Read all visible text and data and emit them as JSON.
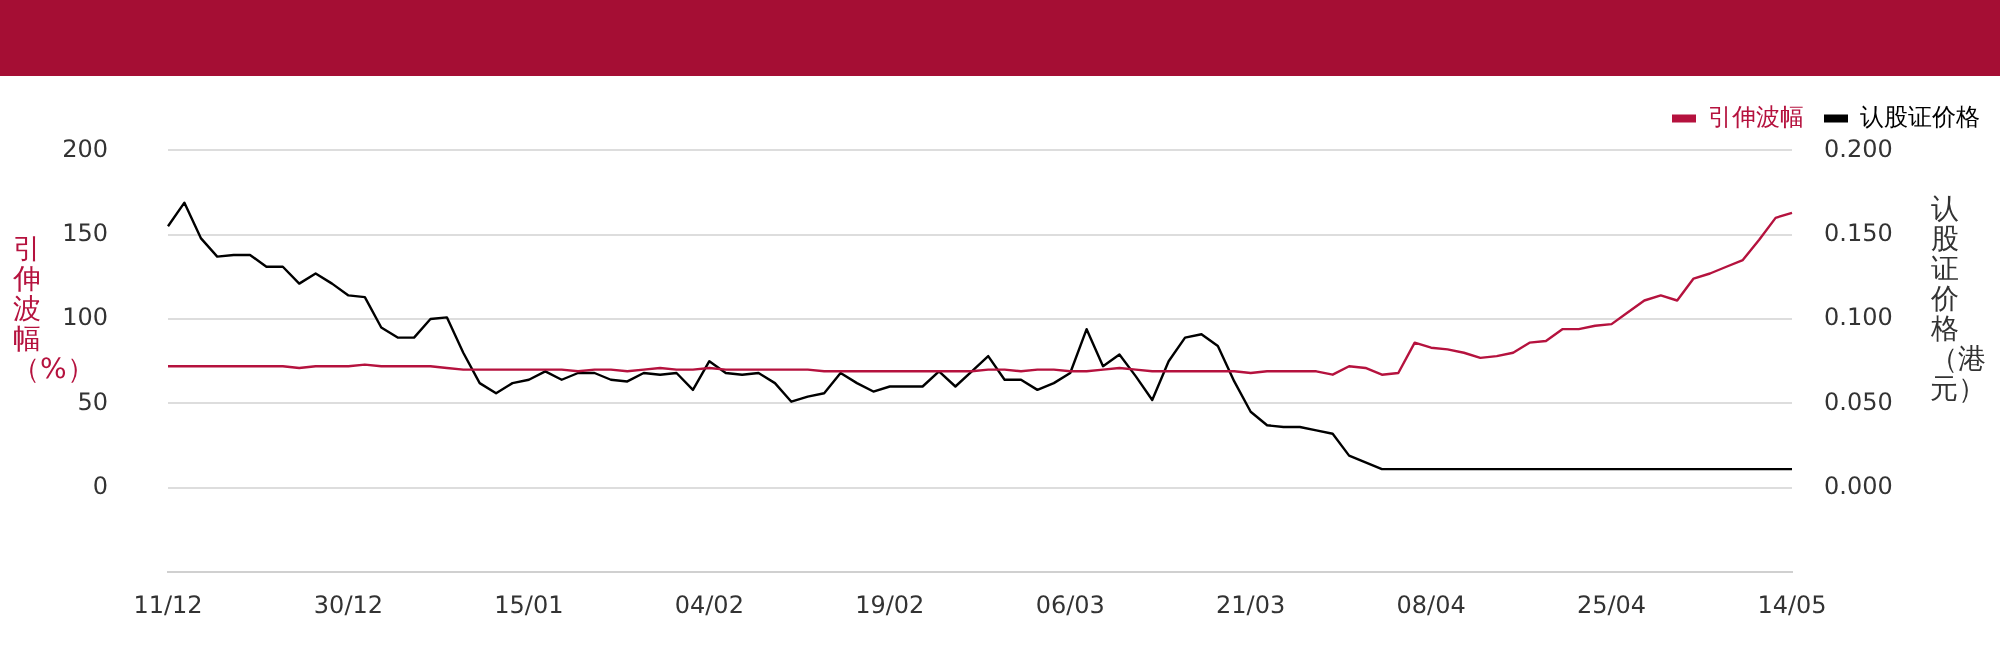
{
  "chart_data": {
    "type": "line",
    "categories": [
      "11/12",
      null,
      null,
      null,
      null,
      null,
      null,
      null,
      null,
      null,
      null,
      "30/12",
      null,
      null,
      null,
      null,
      null,
      null,
      null,
      null,
      null,
      null,
      "15/01",
      null,
      null,
      null,
      null,
      null,
      null,
      null,
      null,
      null,
      null,
      "04/02",
      null,
      null,
      null,
      null,
      null,
      null,
      null,
      null,
      null,
      null,
      "19/02",
      null,
      null,
      null,
      null,
      null,
      null,
      null,
      null,
      null,
      null,
      "06/03",
      null,
      null,
      null,
      null,
      null,
      null,
      null,
      null,
      null,
      null,
      "21/03",
      null,
      null,
      null,
      null,
      null,
      null,
      null,
      null,
      null,
      null,
      "08/04",
      null,
      null,
      null,
      null,
      null,
      null,
      null,
      null,
      null,
      null,
      "25/04",
      null,
      null,
      null,
      null,
      null,
      null,
      null,
      null,
      null,
      null,
      "14/05"
    ],
    "series": [
      {
        "name": "引伸波幅",
        "color": "#b5123e",
        "values": [
          72,
          72,
          72,
          72,
          72,
          72,
          72,
          72,
          71,
          72,
          72,
          72,
          73,
          72,
          72,
          72,
          72,
          71,
          70,
          70,
          70,
          70,
          70,
          70,
          70,
          69,
          70,
          70,
          69,
          70,
          71,
          70,
          70,
          71,
          70,
          70,
          70,
          70,
          70,
          70,
          69,
          69,
          69,
          69,
          69,
          69,
          69,
          69,
          69,
          69,
          70,
          70,
          69,
          70,
          70,
          69,
          69,
          70,
          71,
          70,
          69,
          69,
          69,
          69,
          69,
          69,
          68,
          69,
          69,
          69,
          69,
          67,
          72,
          71,
          67,
          68,
          86,
          83,
          82,
          80,
          77,
          78,
          80,
          86,
          87,
          94,
          94,
          96,
          97,
          104,
          111,
          114,
          111,
          124,
          127,
          131,
          135,
          147,
          160,
          163
        ]
      },
      {
        "name": "认股证价格",
        "color": "#000000",
        "axis": "y2",
        "values": [
          0.155,
          0.169,
          0.148,
          0.137,
          0.138,
          0.138,
          0.131,
          0.131,
          0.121,
          0.127,
          0.121,
          0.114,
          0.113,
          0.095,
          0.089,
          0.089,
          0.1,
          0.101,
          0.08,
          0.062,
          0.056,
          0.062,
          0.064,
          0.069,
          0.064,
          0.068,
          0.068,
          0.064,
          0.063,
          0.068,
          0.067,
          0.068,
          0.058,
          0.075,
          0.068,
          0.067,
          0.068,
          0.062,
          0.051,
          0.054,
          0.056,
          0.068,
          0.062,
          0.057,
          0.06,
          0.06,
          0.06,
          0.069,
          0.06,
          0.069,
          0.078,
          0.064,
          0.064,
          0.058,
          0.062,
          0.068,
          0.094,
          0.072,
          0.079,
          0.066,
          0.052,
          0.075,
          0.089,
          0.091,
          0.084,
          0.063,
          0.045,
          0.037,
          0.036,
          0.036,
          0.034,
          0.032,
          0.019,
          0.015,
          0.011,
          0.011,
          0.011,
          0.011,
          0.011,
          0.011,
          0.011,
          0.011,
          0.011,
          0.011,
          0.011,
          0.011,
          0.011,
          0.011,
          0.011,
          0.011,
          0.011,
          0.011,
          0.011,
          0.011,
          0.011,
          0.011,
          0.011,
          0.011,
          0.011,
          0.011
        ]
      }
    ],
    "ylabel": "引伸波幅（%）",
    "y2label": "认股证价格（港元）",
    "ylim": [
      -50,
      200
    ],
    "yticks": [
      0,
      50,
      100,
      150,
      200
    ],
    "y2lim": [
      -0.05,
      0.2
    ],
    "y2ticks": [
      {
        "value": 0,
        "label": "0.000"
      },
      {
        "value": 0.05,
        "label": "0.050"
      },
      {
        "value": 0.1,
        "label": "0.100"
      },
      {
        "value": 0.15,
        "label": "0.150"
      },
      {
        "value": 0.2,
        "label": "0.200"
      }
    ],
    "grid": "y",
    "legend": "top right",
    "marker": "none",
    "line_style": "solid"
  }
}
